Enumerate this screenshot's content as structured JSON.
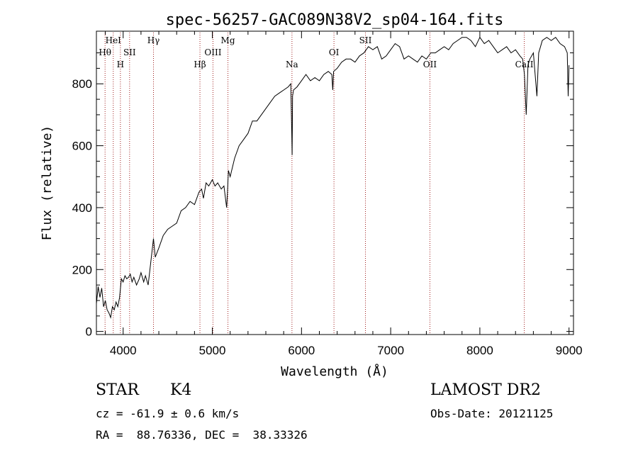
{
  "chart_data": {
    "type": "line",
    "title": "spec-56257-GAC089N38V2_sp04-164.fits",
    "xlabel": "Wavelength (Å)",
    "ylabel": "Flux (relative)",
    "xlim": [
      3700,
      9050
    ],
    "ylim": [
      -10,
      970
    ],
    "xticks": [
      4000,
      5000,
      6000,
      7000,
      8000,
      9000
    ],
    "yticks": [
      0,
      200,
      400,
      600,
      800
    ],
    "series": [
      {
        "name": "flux",
        "x": [
          3700,
          3720,
          3740,
          3760,
          3780,
          3800,
          3820,
          3840,
          3860,
          3880,
          3900,
          3920,
          3940,
          3960,
          3980,
          4000,
          4020,
          4040,
          4060,
          4080,
          4100,
          4120,
          4150,
          4180,
          4200,
          4230,
          4250,
          4280,
          4300,
          4320,
          4340,
          4360,
          4400,
          4450,
          4500,
          4550,
          4600,
          4650,
          4700,
          4750,
          4800,
          4850,
          4880,
          4900,
          4930,
          4960,
          5000,
          5030,
          5060,
          5100,
          5130,
          5160,
          5170,
          5180,
          5200,
          5250,
          5300,
          5350,
          5400,
          5450,
          5500,
          5550,
          5600,
          5650,
          5700,
          5750,
          5800,
          5850,
          5880,
          5890,
          5895,
          5900,
          5910,
          5950,
          6000,
          6050,
          6100,
          6150,
          6200,
          6250,
          6300,
          6340,
          6350,
          6360,
          6400,
          6450,
          6500,
          6550,
          6600,
          6650,
          6700,
          6750,
          6800,
          6850,
          6900,
          6950,
          7000,
          7050,
          7100,
          7150,
          7200,
          7250,
          7300,
          7350,
          7400,
          7450,
          7500,
          7550,
          7600,
          7650,
          7700,
          7750,
          7800,
          7850,
          7900,
          7950,
          8000,
          8050,
          8100,
          8150,
          8200,
          8250,
          8300,
          8350,
          8400,
          8450,
          8480,
          8500,
          8520,
          8540,
          8560,
          8600,
          8640,
          8660,
          8680,
          8700,
          8750,
          8800,
          8850,
          8900,
          8950,
          8980,
          8990,
          9000
        ],
        "values": [
          90,
          145,
          110,
          140,
          80,
          100,
          70,
          60,
          45,
          80,
          70,
          95,
          80,
          110,
          170,
          160,
          180,
          170,
          175,
          185,
          160,
          175,
          150,
          170,
          190,
          160,
          180,
          150,
          200,
          250,
          300,
          240,
          270,
          310,
          330,
          340,
          350,
          390,
          400,
          420,
          410,
          450,
          460,
          430,
          480,
          470,
          490,
          470,
          480,
          460,
          470,
          400,
          450,
          520,
          500,
          560,
          600,
          620,
          640,
          680,
          680,
          700,
          720,
          740,
          760,
          770,
          780,
          790,
          800,
          650,
          570,
          760,
          780,
          790,
          810,
          830,
          810,
          820,
          810,
          830,
          840,
          830,
          780,
          840,
          850,
          870,
          880,
          880,
          870,
          890,
          900,
          920,
          910,
          920,
          880,
          890,
          910,
          930,
          920,
          880,
          890,
          880,
          870,
          890,
          880,
          900,
          900,
          910,
          920,
          910,
          930,
          940,
          950,
          950,
          940,
          920,
          950,
          930,
          940,
          920,
          900,
          910,
          920,
          900,
          910,
          890,
          880,
          830,
          700,
          860,
          880,
          900,
          760,
          900,
          920,
          940,
          950,
          940,
          950,
          930,
          920,
          900,
          760,
          860
        ]
      }
    ],
    "annotations": [
      {
        "x": 3797,
        "label": "Hθ",
        "row": 2
      },
      {
        "x": 3889,
        "label": "HeI",
        "row": 1
      },
      {
        "x": 3969,
        "label": "H",
        "row": 3
      },
      {
        "x": 4072,
        "label": "SII",
        "row": 2
      },
      {
        "x": 4340,
        "label": "Hγ",
        "row": 1
      },
      {
        "x": 4861,
        "label": "Hβ",
        "row": 3
      },
      {
        "x": 5007,
        "label": "OIII",
        "row": 2
      },
      {
        "x": 5175,
        "label": "Mg",
        "row": 1
      },
      {
        "x": 5893,
        "label": "Na",
        "row": 3
      },
      {
        "x": 6364,
        "label": "OI",
        "row": 2
      },
      {
        "x": 6717,
        "label": "SII",
        "row": 1
      },
      {
        "x": 7440,
        "label": "OII",
        "row": 3
      },
      {
        "x": 8498,
        "label": "CaII",
        "row": 3
      }
    ]
  },
  "info": {
    "object_class": "STAR",
    "subclass": "K4",
    "survey": "LAMOST DR2",
    "velocity": "cz = -61.9 ± 0.6 km/s",
    "obs_date": "Obs-Date: 20121125",
    "coords": "RA =  88.76336, DEC =  38.33326"
  }
}
